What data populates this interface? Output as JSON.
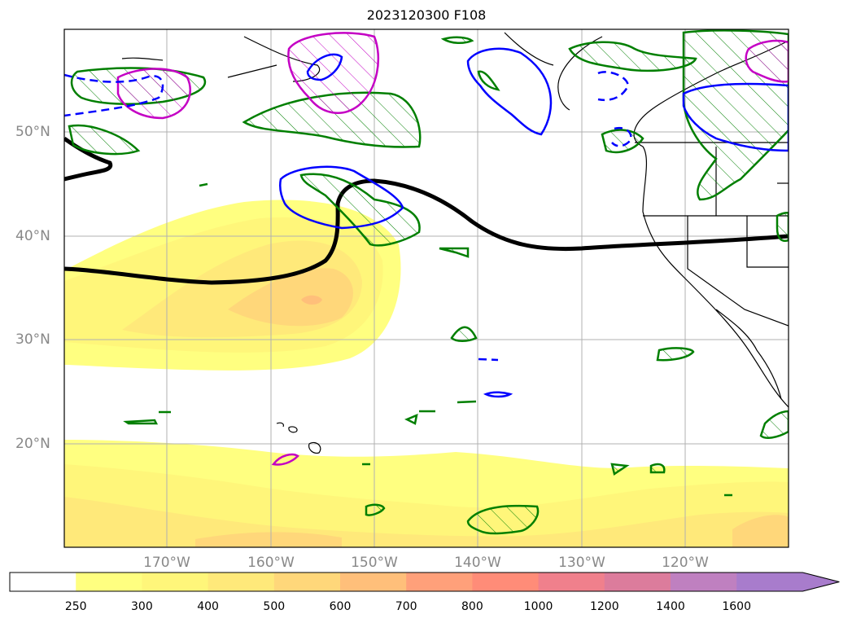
{
  "title": "2023120300 F108",
  "lat_labels": [
    "50°N",
    "40°N",
    "30°N",
    "20°N"
  ],
  "lon_labels": [
    "170°W",
    "160°W",
    "150°W",
    "140°W",
    "130°W",
    "120°W"
  ],
  "colorbar": {
    "ticks": [
      "250",
      "300",
      "400",
      "500",
      "600",
      "700",
      "800",
      "1000",
      "1200",
      "1400",
      "1600"
    ],
    "colors": [
      "#ffffff",
      "#ffff80",
      "#fff67a",
      "#ffe97a",
      "#ffd77a",
      "#ffbf7a",
      "#ffa07a",
      "#ff8c78",
      "#f0808c",
      "#dc7c9c",
      "#bf80c0",
      "#a87ccc"
    ],
    "extend": "max"
  },
  "legend_colors": {
    "thick_line": "#000000",
    "magenta_contour": "#c400c4",
    "blue_contour": "#0000ff",
    "green_contour": "#007f00"
  }
}
